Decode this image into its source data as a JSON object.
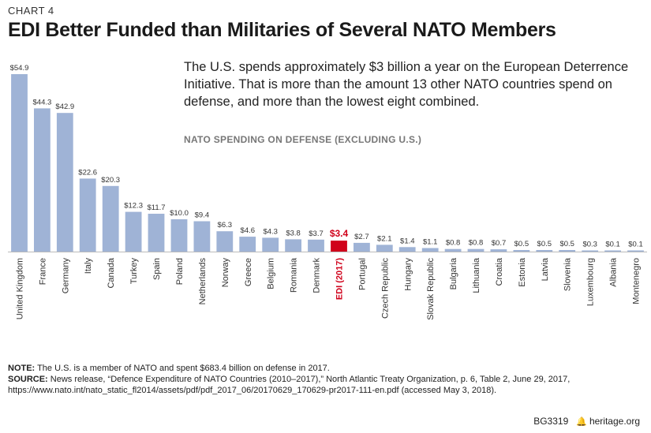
{
  "header": {
    "chart_number": "CHART 4",
    "title": "EDI Better Funded than Militaries of Several NATO Members"
  },
  "description": "The U.S. spends approximately $3 billion a year on the European Deterrence Initiative. That is more than the amount 13 other NATO countries spend on defense, and more than the lowest eight combined.",
  "colors": {
    "bar": "#9fb3d6",
    "highlight": "#d0021b"
  },
  "chart_data": {
    "type": "bar",
    "title": "NATO SPENDING ON DEFENSE (EXCLUDING U.S.)",
    "xlabel": "",
    "ylabel": "",
    "ylim": [
      0,
      55
    ],
    "grid": false,
    "categories": [
      "United Kingdom",
      "France",
      "Germany",
      "Italy",
      "Canada",
      "Turkey",
      "Spain",
      "Poland",
      "Netherlands",
      "Norway",
      "Greece",
      "Belgium",
      "Romania",
      "Denmark",
      "EDI (2017)",
      "Portugal",
      "Czech Republic",
      "Hungary",
      "Slovak Republic",
      "Bulgaria",
      "Lithuania",
      "Croatia",
      "Estonia",
      "Latvia",
      "Slovenia",
      "Luxembourg",
      "Albania",
      "Montenegro"
    ],
    "values": [
      54.9,
      44.3,
      42.9,
      22.6,
      20.3,
      12.3,
      11.7,
      10.0,
      9.4,
      6.3,
      4.6,
      4.3,
      3.8,
      3.7,
      3.4,
      2.7,
      2.1,
      1.4,
      1.1,
      0.8,
      0.8,
      0.7,
      0.5,
      0.5,
      0.5,
      0.3,
      0.1,
      0.1
    ],
    "value_labels": [
      "$54.9",
      "$44.3",
      "$42.9",
      "$22.6",
      "$20.3",
      "$12.3",
      "$11.7",
      "$10.0",
      "$9.4",
      "$6.3",
      "$4.6",
      "$4.3",
      "$3.8",
      "$3.7",
      "$3.4",
      "$2.7",
      "$2.1",
      "$1.4",
      "$1.1",
      "$0.8",
      "$0.8",
      "$0.7",
      "$0.5",
      "$0.5",
      "$0.5",
      "$0.3",
      "$0.1",
      "$0.1"
    ],
    "highlight_index": 14,
    "units": "billions of U.S. dollars"
  },
  "notes": {
    "note_label": "NOTE:",
    "note_text": " The U.S. is a member of NATO and spent $683.4 billion on defense in 2017.",
    "source_label": "SOURCE:",
    "source_text": " News release, “Defence Expenditure of NATO Countries (2010–2017),” North Atlantic Treaty Organization, p. 6, Table 2, June 29, 2017, https://www.nato.int/nato_static_fl2014/assets/pdf/pdf_2017_06/20170629_170629-pr2017-111-en.pdf (accessed May 3, 2018)."
  },
  "footer": {
    "code": "BG3319",
    "site": "heritage.org"
  }
}
